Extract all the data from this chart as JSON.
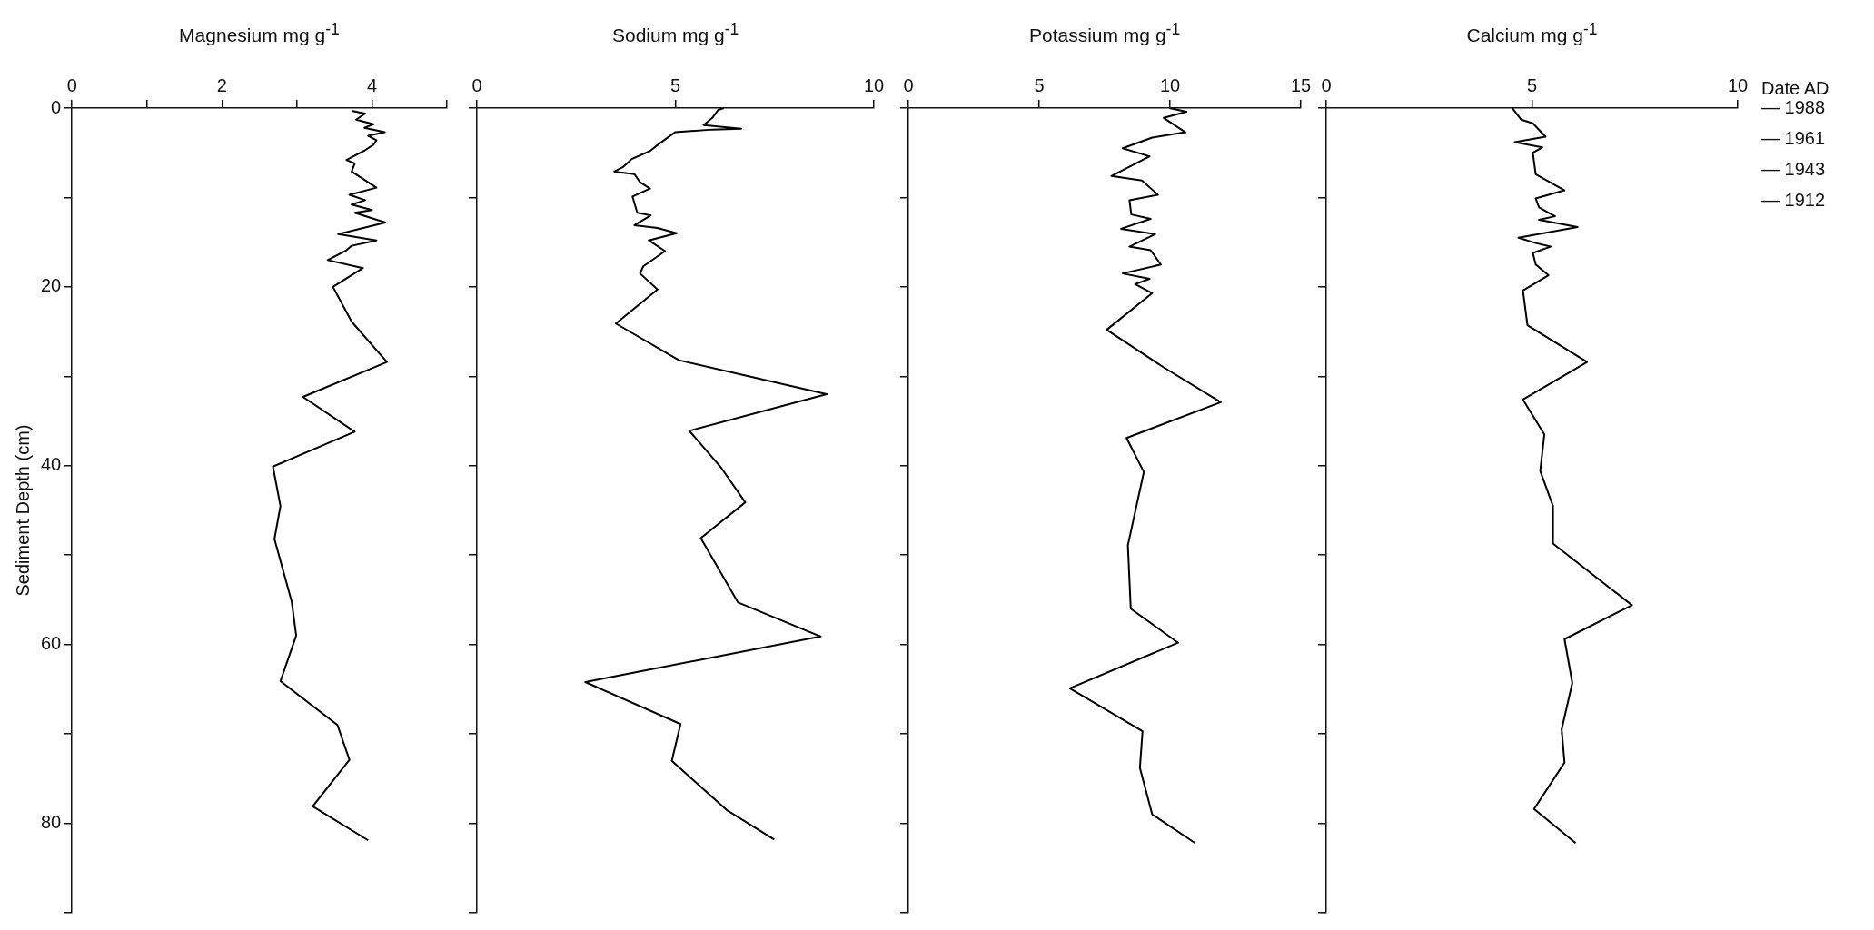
{
  "chart_data": [
    {
      "type": "line",
      "title": "Magnesium mg g$^{-1}$",
      "ylabel": "Sediment Depth (cm)",
      "xlim": [
        0,
        5
      ],
      "xticks": [
        0,
        {
          "value": 1,
          "label": null
        },
        2,
        {
          "value": 3,
          "label": null
        },
        4,
        {
          "value": 5,
          "label": null
        }
      ],
      "ylim": [
        90,
        0
      ],
      "yticks": [
        0,
        {
          "value": 10,
          "label": null
        },
        20,
        {
          "value": 30,
          "label": null
        },
        40,
        {
          "value": 50,
          "label": null
        },
        60,
        {
          "value": 70,
          "label": null
        },
        80,
        {
          "value": 90,
          "label": null
        }
      ],
      "series": [
        {
          "color": "#000000",
          "x": [
            3.73,
            3.91,
            3.79,
            4.02,
            3.9,
            4.17,
            3.95,
            4.06,
            4.02,
            3.91,
            3.66,
            3.77,
            3.73,
            4.06,
            3.7,
            3.91,
            3.73,
            4.0,
            3.77,
            4.18,
            3.55,
            4.06,
            3.73,
            3.66,
            3.41,
            3.88,
            3.48,
            3.73,
            4.2,
            3.08,
            3.77,
            2.68,
            2.78,
            2.7,
            2.93,
            2.99,
            2.78,
            3.54,
            3.7,
            3.21,
            3.95
          ],
          "values": [
            0.3,
            0.6,
            1.3,
            1.8,
            2.2,
            2.7,
            3.1,
            3.6,
            4.1,
            4.7,
            5.8,
            6.2,
            7.1,
            8.9,
            9.7,
            10.3,
            10.8,
            11.4,
            11.7,
            12.8,
            14.1,
            14.8,
            15.4,
            15.9,
            17.0,
            17.9,
            20.0,
            23.9,
            28.4,
            32.3,
            36.2,
            40.1,
            44.5,
            48.2,
            55.2,
            59.0,
            64.1,
            69.0,
            72.9,
            78.1,
            81.9
          ]
        }
      ]
    },
    {
      "type": "line",
      "title": "Sodium mg g$^{-1}$",
      "tick_labels": "x",
      "xlim": [
        0,
        10
      ],
      "xticks": [
        0,
        5,
        10
      ],
      "ylim": [
        90,
        0
      ],
      "yticks": [
        {
          "value": 0,
          "label": null
        },
        {
          "value": 10,
          "label": null
        },
        {
          "value": 20,
          "label": null
        },
        {
          "value": 30,
          "label": null
        },
        {
          "value": 40,
          "label": null
        },
        {
          "value": 50,
          "label": null
        },
        {
          "value": 60,
          "label": null
        },
        {
          "value": 70,
          "label": null
        },
        {
          "value": 80,
          "label": null
        },
        {
          "value": 90,
          "label": null
        }
      ],
      "series": [
        {
          "color": "#000000",
          "x": [
            6.22,
            6.08,
            5.93,
            5.71,
            6.66,
            5.93,
            4.99,
            4.59,
            4.36,
            3.9,
            3.68,
            3.46,
            3.97,
            4.11,
            4.36,
            3.92,
            4.04,
            4.38,
            3.97,
            4.55,
            5.03,
            4.33,
            4.74,
            4.19,
            4.11,
            4.55,
            3.5,
            5.09,
            8.81,
            5.35,
            6.15,
            6.76,
            5.64,
            6.58,
            8.66,
            2.73,
            5.13,
            4.91,
            6.29,
            7.49
          ],
          "values": [
            0,
            0.2,
            1.1,
            1.9,
            2.3,
            2.4,
            2.7,
            4.0,
            4.8,
            5.7,
            6.6,
            7.1,
            7.4,
            8.3,
            9.0,
            9.9,
            11.7,
            12.0,
            13.1,
            13.4,
            14.0,
            14.8,
            16.0,
            17.7,
            18.5,
            20.3,
            24.1,
            28.2,
            32.0,
            36.1,
            40.2,
            44.1,
            48.1,
            55.3,
            59.1,
            64.2,
            68.9,
            73.0,
            78.5,
            81.8
          ]
        }
      ]
    },
    {
      "type": "line",
      "title": "Potassium mg g$^{-1}$",
      "tick_labels": "x",
      "xlim": [
        0,
        15
      ],
      "xticks": [
        0,
        5,
        10,
        15
      ],
      "ylim": [
        90,
        0
      ],
      "yticks": [
        {
          "value": 0,
          "label": null
        },
        {
          "value": 10,
          "label": null
        },
        {
          "value": 20,
          "label": null
        },
        {
          "value": 30,
          "label": null
        },
        {
          "value": 40,
          "label": null
        },
        {
          "value": 50,
          "label": null
        },
        {
          "value": 60,
          "label": null
        },
        {
          "value": 70,
          "label": null
        },
        {
          "value": 80,
          "label": null
        },
        {
          "value": 90,
          "label": null
        }
      ],
      "series": [
        {
          "color": "#000000",
          "x": [
            9.98,
            10.63,
            9.76,
            10.59,
            9.32,
            8.19,
            9.22,
            7.76,
            8.93,
            9.54,
            8.45,
            8.52,
            9.26,
            8.13,
            9.43,
            8.45,
            9.26,
            9.65,
            8.19,
            9.22,
            8.67,
            9.32,
            7.58,
            9.76,
            11.94,
            8.34,
            9.0,
            8.39,
            8.5,
            10.31,
            6.17,
            8.95,
            8.85,
            9.32,
            10.96
          ],
          "values": [
            0,
            0.4,
            1.1,
            2.7,
            3.3,
            4.5,
            5.4,
            7.6,
            8.1,
            9.7,
            10.3,
            11.9,
            12.4,
            13.5,
            14.1,
            15.5,
            15.9,
            17.5,
            18.5,
            19.1,
            19.7,
            20.7,
            24.8,
            29.0,
            32.9,
            36.9,
            40.7,
            48.9,
            56.0,
            59.8,
            64.9,
            69.7,
            73.8,
            79.0,
            82.2
          ]
        }
      ]
    },
    {
      "type": "line",
      "title": "Calcium mg g$^{-1}$",
      "tick_labels": "x",
      "y2label": "Date AD",
      "xlim": [
        0,
        10
      ],
      "xticks": [
        0,
        5,
        10
      ],
      "ylim": [
        90,
        0
      ],
      "yticks": [
        {
          "value": 0,
          "label": null
        },
        {
          "value": 10,
          "label": null
        },
        {
          "value": 20,
          "label": null
        },
        {
          "value": 30,
          "label": null
        },
        {
          "value": 40,
          "label": null
        },
        {
          "value": 50,
          "label": null
        },
        {
          "value": 60,
          "label": null
        },
        {
          "value": 70,
          "label": null
        },
        {
          "value": 80,
          "label": null
        },
        {
          "value": 90,
          "label": null
        }
      ],
      "annotations": [
        "— 1988",
        "— 1961",
        "— 1943",
        "— 1912"
      ],
      "series": [
        {
          "color": "#000000",
          "x": [
            4.52,
            4.74,
            5.02,
            5.33,
            4.58,
            5.25,
            5.02,
            5.09,
            5.79,
            5.09,
            5.17,
            5.56,
            5.17,
            6.11,
            4.67,
            5.09,
            5.45,
            5.02,
            5.09,
            5.4,
            4.78,
            4.89,
            6.34,
            4.78,
            5.3,
            5.2,
            5.51,
            5.51,
            7.43,
            5.79,
            5.98,
            5.72,
            5.79,
            5.05,
            6.06
          ],
          "values": [
            0,
            1.3,
            1.7,
            3.2,
            3.8,
            4.4,
            5.0,
            7.4,
            9.2,
            10.1,
            11.1,
            12.1,
            12.5,
            13.3,
            14.5,
            15.1,
            15.5,
            16.2,
            17.5,
            18.7,
            20.4,
            24.3,
            28.4,
            32.6,
            36.5,
            40.6,
            44.5,
            48.7,
            55.6,
            59.4,
            64.3,
            69.5,
            73.2,
            78.4,
            82.2
          ]
        }
      ]
    }
  ]
}
